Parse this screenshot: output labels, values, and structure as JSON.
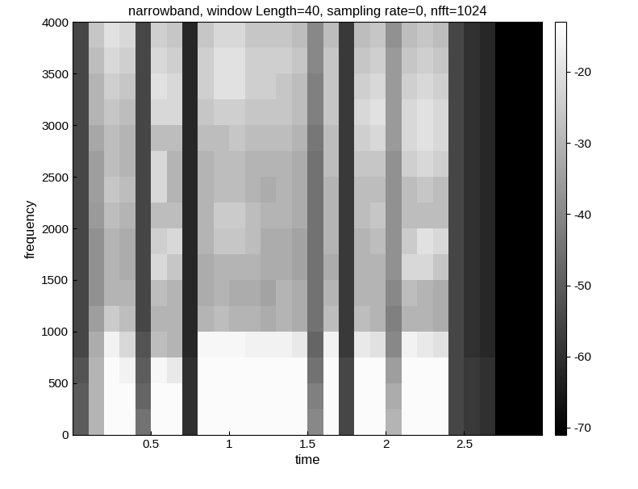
{
  "chart_data": {
    "type": "heatmap",
    "title": "narrowband, window Length=40, sampling rate=0, nfft=1024",
    "x_label": "time",
    "y_label": "frequency",
    "xlim": [
      0,
      3
    ],
    "xticks": [
      0.5,
      1,
      1.5,
      2,
      2.5
    ],
    "ylim": [
      0,
      4000
    ],
    "yticks": [
      0,
      500,
      1000,
      1500,
      2000,
      2500,
      3000,
      3500,
      4000
    ],
    "x_edges": [
      0,
      0.1,
      0.2,
      0.3,
      0.4,
      0.5,
      0.6,
      0.7,
      0.8,
      0.9,
      1.0,
      1.1,
      1.2,
      1.3,
      1.4,
      1.5,
      1.6,
      1.7,
      1.8,
      1.9,
      2.0,
      2.1,
      2.2,
      2.3,
      2.4,
      2.5,
      2.6,
      2.7,
      2.8,
      2.9,
      3.0
    ],
    "y_edges": [
      0,
      250,
      500,
      750,
      1000,
      1250,
      1500,
      1750,
      2000,
      2250,
      2500,
      2750,
      3000,
      3250,
      3500,
      3750,
      4000
    ],
    "cells": [
      [
        -50,
        -30,
        -14,
        -14,
        -45,
        -14,
        -14,
        -60,
        -14,
        -14,
        -14,
        -14,
        -14,
        -14,
        -14,
        -40,
        -14,
        -55,
        -14,
        -14,
        -30,
        -14,
        -14,
        -14,
        -55,
        -58,
        -60,
        -71,
        -71,
        -71
      ],
      [
        -50,
        -30,
        -14,
        -14,
        -48,
        -14,
        -14,
        -60,
        -14,
        -14,
        -14,
        -14,
        -14,
        -14,
        -14,
        -42,
        -14,
        -55,
        -14,
        -14,
        -32,
        -14,
        -14,
        -14,
        -55,
        -58,
        -60,
        -71,
        -71,
        -71
      ],
      [
        -52,
        -30,
        -14,
        -16,
        -50,
        -15,
        -18,
        -60,
        -14,
        -14,
        -14,
        -14,
        -14,
        -14,
        -14,
        -45,
        -14,
        -55,
        -14,
        -14,
        -35,
        -14,
        -14,
        -14,
        -55,
        -58,
        -60,
        -71,
        -71,
        -71
      ],
      [
        -55,
        -32,
        -16,
        -22,
        -52,
        -28,
        -30,
        -62,
        -15,
        -15,
        -15,
        -16,
        -16,
        -16,
        -18,
        -48,
        -16,
        -58,
        -18,
        -20,
        -40,
        -16,
        -18,
        -20,
        -55,
        -60,
        -62,
        -71,
        -71,
        -71
      ],
      [
        -55,
        -35,
        -25,
        -28,
        -55,
        -30,
        -30,
        -62,
        -30,
        -28,
        -30,
        -30,
        -32,
        -30,
        -32,
        -45,
        -28,
        -58,
        -28,
        -30,
        -42,
        -30,
        -30,
        -32,
        -55,
        -60,
        -62,
        -71,
        -71,
        -71
      ],
      [
        -55,
        -38,
        -30,
        -30,
        -55,
        -28,
        -30,
        -62,
        -32,
        -30,
        -32,
        -32,
        -34,
        -30,
        -32,
        -45,
        -30,
        -58,
        -30,
        -30,
        -40,
        -28,
        -30,
        -32,
        -55,
        -60,
        -62,
        -71,
        -71,
        -71
      ],
      [
        -55,
        -38,
        -30,
        -32,
        -55,
        -22,
        -26,
        -62,
        -32,
        -30,
        -30,
        -30,
        -32,
        -32,
        -34,
        -45,
        -32,
        -58,
        -30,
        -30,
        -38,
        -22,
        -22,
        -26,
        -55,
        -60,
        -62,
        -71,
        -71,
        -71
      ],
      [
        -55,
        -38,
        -30,
        -32,
        -55,
        -24,
        -22,
        -62,
        -30,
        -26,
        -26,
        -28,
        -32,
        -32,
        -34,
        -45,
        -30,
        -58,
        -30,
        -28,
        -38,
        -25,
        -20,
        -22,
        -55,
        -60,
        -62,
        -71,
        -71,
        -71
      ],
      [
        -55,
        -36,
        -28,
        -30,
        -55,
        -28,
        -28,
        -62,
        -30,
        -25,
        -25,
        -28,
        -30,
        -30,
        -32,
        -45,
        -30,
        -58,
        -28,
        -26,
        -38,
        -28,
        -28,
        -28,
        -55,
        -60,
        -62,
        -71,
        -71,
        -71
      ],
      [
        -55,
        -35,
        -26,
        -28,
        -55,
        -22,
        -30,
        -62,
        -30,
        -28,
        -28,
        -30,
        -32,
        -30,
        -32,
        -45,
        -30,
        -58,
        -28,
        -28,
        -38,
        -28,
        -26,
        -28,
        -55,
        -60,
        -62,
        -71,
        -71,
        -71
      ],
      [
        -55,
        -35,
        -28,
        -30,
        -55,
        -22,
        -30,
        -62,
        -30,
        -28,
        -28,
        -30,
        -30,
        -30,
        -32,
        -45,
        -28,
        -58,
        -26,
        -26,
        -38,
        -24,
        -22,
        -24,
        -55,
        -60,
        -62,
        -71,
        -71,
        -71
      ],
      [
        -55,
        -33,
        -28,
        -30,
        -55,
        -28,
        -28,
        -62,
        -28,
        -28,
        -26,
        -28,
        -28,
        -28,
        -30,
        -44,
        -28,
        -58,
        -24,
        -22,
        -36,
        -22,
        -20,
        -22,
        -55,
        -60,
        -62,
        -71,
        -71,
        -71
      ],
      [
        -55,
        -30,
        -26,
        -28,
        -55,
        -22,
        -22,
        -62,
        -26,
        -24,
        -24,
        -26,
        -26,
        -26,
        -28,
        -42,
        -26,
        -58,
        -22,
        -20,
        -36,
        -22,
        -20,
        -22,
        -55,
        -60,
        -62,
        -71,
        -71,
        -71
      ],
      [
        -55,
        -30,
        -24,
        -26,
        -55,
        -20,
        -22,
        -62,
        -24,
        -20,
        -20,
        -24,
        -24,
        -26,
        -28,
        -42,
        -26,
        -58,
        -24,
        -22,
        -36,
        -24,
        -22,
        -24,
        -55,
        -60,
        -62,
        -71,
        -71,
        -71
      ],
      [
        -55,
        -28,
        -22,
        -24,
        -55,
        -22,
        -24,
        -62,
        -24,
        -20,
        -20,
        -24,
        -24,
        -24,
        -26,
        -40,
        -26,
        -58,
        -26,
        -24,
        -36,
        -26,
        -24,
        -26,
        -55,
        -60,
        -62,
        -71,
        -71,
        -71
      ],
      [
        -55,
        -26,
        -20,
        -22,
        -55,
        -24,
        -26,
        -62,
        -26,
        -22,
        -22,
        -26,
        -26,
        -26,
        -28,
        -40,
        -28,
        -58,
        -28,
        -26,
        -38,
        -28,
        -26,
        -28,
        -55,
        -60,
        -62,
        -71,
        -71,
        -71
      ]
    ],
    "color_range": [
      -71,
      -13
    ],
    "color_ticks": [
      -70,
      -60,
      -50,
      -40,
      -30,
      -20
    ]
  }
}
